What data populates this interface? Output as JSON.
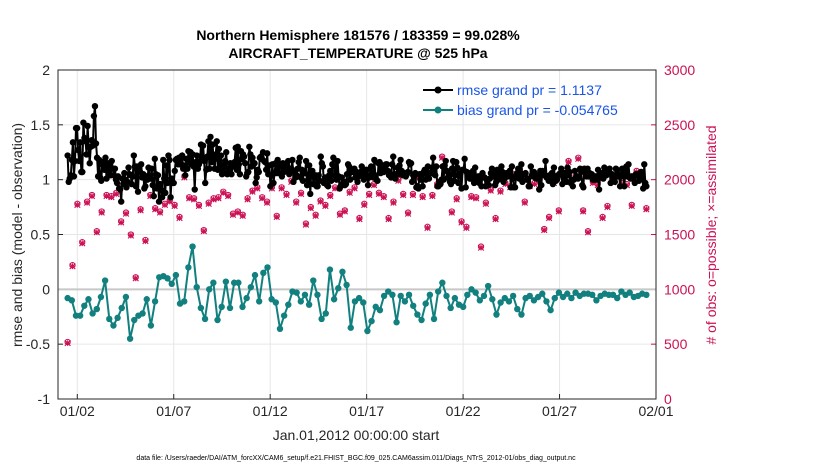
{
  "chart_data": {
    "type": "line",
    "title_line1": "Northern Hemisphere 181576 / 183359 = 99.028%",
    "title_line2": "AIRCRAFT_TEMPERATURE @ 525 hPa",
    "xlabel": "Jan.01,2012 00:00:00 start",
    "ylabel_left": "rmse and bias (model - observation)",
    "ylabel_right": "# of obs: o=possible; ×=assimilated",
    "footer": "data file: /Users/raeder/DAI/ATM_forcXX/CAM6_setup/f.e21.FHIST_BGC.f09_025.CAM6assim.011/Diags_NTrS_2012-01/obs_diag_output.nc",
    "xlim": [
      0.5,
      31.5
    ],
    "ylim_left": [
      -1,
      2
    ],
    "ylim_right": [
      0,
      3000
    ],
    "x_ticks": [
      1.5,
      6.5,
      11.5,
      16.5,
      21.5,
      26.5,
      31.5
    ],
    "x_tick_labels": [
      "01/02",
      "01/07",
      "01/12",
      "01/17",
      "01/22",
      "01/27",
      "02/01"
    ],
    "y_left_ticks": [
      -1,
      -0.5,
      0,
      0.5,
      1,
      1.5,
      2
    ],
    "y_left_tick_labels": [
      "-1",
      "-0.5",
      "0",
      "0.5",
      "1",
      "1.5",
      "2"
    ],
    "y_right_ticks": [
      0,
      500,
      1000,
      1500,
      2000,
      2500,
      3000
    ],
    "y_right_tick_labels": [
      "0",
      "500",
      "1000",
      "1500",
      "2000",
      "2500",
      "3000"
    ],
    "colors": {
      "rmse": "#000000",
      "bias": "#11807f",
      "obs": "#cc1155",
      "legend_text": "#1a55e8",
      "zero_line": "#c8c8c8",
      "grid": "#e6e6e6"
    },
    "series": [
      {
        "name": "rmse grand pr = 1.1137",
        "key": "rmse",
        "values": [
          1.22,
          0.98,
          1.01,
          1.04,
          1.18,
          1.34,
          1.03,
          1.17,
          1.47,
          1.47,
          1.27,
          1.17,
          1.34,
          1.07,
          1.07,
          1.52,
          1.38,
          1.35,
          1.23,
          1.49,
          1.3,
          1.15,
          1.3,
          1.36,
          1.31,
          1.58,
          1.67,
          1.33,
          1.2,
          1.03,
          1.18,
          1.02,
          0.99,
          1.16,
          1.13,
          1.09,
          1.2,
          1.01,
          1.15,
          1.07,
          1.13,
          1.04,
          1.17,
          1.1,
          1.04,
          1.1,
          1.0,
          0.97,
          1.03,
          0.92,
          0.91,
          0.8,
          1.01,
          0.96,
          1.06,
          1.0,
          0.93,
          0.98,
          1.11,
          1.05,
          1.04,
          0.96,
          1.03,
          1.22,
          1.12,
          0.94,
          1.12,
          0.89,
          1.12,
          1.07,
          1.14,
          1.02,
          1.05,
          0.92,
          0.94,
          1.03,
          1.0,
          1.11,
          1.03,
          1.01,
          1.1,
          0.95,
          0.85,
          1.19,
          1.05,
          0.92,
          1.04,
          0.8,
          0.96,
          0.91,
          0.84,
          1.18,
          1.01,
          0.88,
          1.13,
          0.97,
          1.22,
          1.18,
          0.84,
          1.01,
          0.97,
          0.97,
          1.08,
          1.18,
          1.19,
          1.14,
          1.2,
          1.14,
          1.2,
          1.22,
          1.1,
          1.13,
          1.04,
          1.19,
          1.1,
          1.26,
          1.16,
          1.25,
          1.14,
          1.23,
          1.12,
          0.91,
          1.16,
          1.22,
          1.1,
          1.14,
          1.17,
          1.32,
          1.2,
          1.31,
          1.17,
          0.97,
          1.09,
          1.21,
          1.35,
          1.1,
          1.39,
          1.16,
          1.32,
          1.18,
          1.1,
          1.23,
          1.35,
          1.09,
          1.28,
          1.1,
          1.22,
          1.05,
          1.13,
          1.06,
          1.17,
          1.25,
          1.05,
          1.1,
          1.1,
          1.15,
          1.05,
          1.12,
          1.13,
          1.16,
          1.29,
          1.09,
          1.3,
          1.14,
          1.05,
          1.26,
          1.19,
          1.23,
          1.21,
          1.15,
          1.03,
          1.06,
          1.07,
          1.3,
          1.23,
          1.12,
          1.2,
          1.14,
          1.15,
          0.97,
          1.02,
          1.09,
          1.07,
          1.2,
          1.21,
          1.19,
          1.25,
          1.17,
          1.16,
          1.09,
          1.24,
          1.05,
          1.13,
          0.94,
          1.04,
          1.14,
          0.97,
          1.06,
          1.15,
          1.06,
          1.18,
          1.06,
          1.13,
          1.14,
          1.03,
          1.15,
          1.07,
          1.14,
          1.1,
          1.13,
          1.17,
          1.05,
          1.08,
          1.1,
          1.18,
          0.98,
          1.07,
          1.02,
          1.04,
          1.1,
          1.16,
          1.2,
          1.02,
          1.09,
          0.99,
          1.08,
          1.06,
          1.17,
          0.95,
          1.0,
          1.13,
          0.87,
          1.08,
          1.08,
          0.96,
          1.02,
          1.04,
          0.94,
          0.94,
          1.04,
          0.99,
          1.21,
          1.15,
          1.12,
          0.97,
          1.02,
          1.0,
          0.95,
          0.94,
          1.04,
          1.08,
          0.99,
          1.14,
          1.2,
          1.04,
          1.12,
          1.0,
          1.17,
          1.03,
          0.92,
          0.94,
          1.02,
          0.96,
          0.98,
          0.95,
          0.96,
          1.05,
          1.14,
          1.12,
          1.0,
          1.07,
          1.08,
          1.07,
          1.1,
          1.02,
          1.07,
          0.98,
          1.03,
          1.04,
          1.07,
          1.12,
          1.08,
          1.0,
          1.04,
          1.09,
          1.09,
          0.95,
          1.02,
          1.04,
          1.12,
          1.06,
          1.02,
          1.18,
          1.04,
          1.0,
          0.99,
          1.15,
          1.16,
          1.06,
          1.1,
          1.13,
          1.07,
          1.1,
          1.14,
          1.14,
          1.08,
          1.04,
          1.05,
          1.02,
          1.14,
          1.21,
          1.05,
          1.01,
          1.05,
          1.11,
          1.05,
          1.13,
          1.18,
          1.08,
          1.04,
          1.05,
          1.06,
          1.03,
          1.05,
          1.07,
          1.16,
          1.14,
          1.15,
          0.98,
          1.04,
          1.03,
          1.06,
          0.93,
          0.94,
          0.92,
          1.05,
          1.0,
          1.05,
          0.94,
          1.07,
          1.09,
          1.0,
          1.06,
          1.12,
          1.01,
          1.06,
          1.06,
          1.11,
          1.2,
          1.05,
          1.04,
          1.12,
          0.94,
          0.94,
          0.98,
          0.96,
          1.0,
          1.12,
          1.0,
          1.13,
          1.17,
          1.08,
          1.02,
          1.05,
          0.98,
          0.96,
          1.1,
          1.17,
          0.99,
          1.04,
          1.16,
          1.11,
          0.97,
          1.05,
          1.06,
          0.92,
          1.09,
          1.09,
          1.19,
          0.93,
          1.07,
          1.03,
          1.06,
          1.01,
          1.01,
          1.05,
          1.08,
          0.97,
          1.11,
          1.02,
          0.98,
          1.03,
          0.97,
          1.03,
          0.94,
          1.06,
          1.02,
          1.02,
          0.94,
          1.0,
          0.95,
          0.95,
          1.01,
          1.06,
          1.1,
          1.03,
          1.05,
          0.95,
          0.98,
          1.09,
          1.0,
          1.06,
          1.02,
          1.12,
          1.07,
          0.98,
          1.01,
          1.04,
          1.06,
          1.03,
          1.05,
          1.08,
          0.93,
          1.12,
          1.01,
          0.93,
          0.93,
          1.03,
          1.06,
          1.1,
          1.01,
          1.01,
          1.14,
          0.98,
          1.05,
          1.05,
          1.06,
          1.0,
          1.01,
          0.94,
          0.94,
          1.12,
          1.04,
          1.03,
          1.07,
          1.05,
          1.01,
          1.03,
          1.03,
          0.91,
          1.08,
          0.95,
          1.08,
          1.05,
          1.04,
          1.17,
          1.02,
          1.03,
          0.99,
          1.04,
          0.99,
          1.06,
          0.96,
          1.11,
          1.02,
          0.99,
          1.0,
          1.04,
          1.05,
          1.06,
          1.1,
          0.96,
          1.02,
          1.06,
          1.06,
          0.98,
          1.11,
          1.04,
          1.07,
          0.97,
          1.0,
          0.94,
          1.0,
          1.08,
          1.02,
          1.03,
          1.01,
          1.02,
          1.1,
          1.07,
          0.95,
          0.93,
          1.1,
          1.09,
          1.03,
          1.1,
          1.03,
          1.06,
          1.05,
          1.05,
          1.0,
          1.0,
          1.0,
          1.03,
          1.0,
          1.09,
          0.91,
          1.03,
          1.05,
          1.06,
          1.01,
          1.11,
          1.07,
          1.04,
          1.07,
          1.09,
          1.1,
          0.97,
          1.05,
          1.02,
          1.0,
          0.98,
          1.1,
          1.09,
          1.03,
          1.05,
          0.94,
          1.03,
          1.1,
          1.05,
          0.94,
          1.06,
          1.12,
          1.03,
          1.14,
          1.02,
          1.01,
          1.03,
          1.01,
          1.03,
          0.97,
          1.05,
          1.04,
          1.05,
          0.99,
          1.01,
          1.07,
          1.05,
          0.92,
          1.14,
          0.97,
          0.94
        ]
      },
      {
        "name": "bias grand pr = -0.054765",
        "key": "bias",
        "values": [
          -0.08,
          -0.1,
          -0.24,
          -0.24,
          -0.15,
          -0.09,
          -0.22,
          -0.18,
          -0.07,
          0.08,
          -0.27,
          -0.33,
          -0.26,
          -0.17,
          -0.07,
          -0.45,
          -0.28,
          -0.24,
          -0.22,
          -0.09,
          -0.33,
          -0.11,
          0.11,
          0.12,
          0.1,
          0.05,
          0.13,
          -0.13,
          -0.11,
          0.2,
          0.39,
          0.02,
          -0.17,
          -0.27,
          0.0,
          0.06,
          -0.28,
          -0.16,
          0.07,
          -0.17,
          0.06,
          0.06,
          -0.16,
          -0.08,
          0.02,
          0.13,
          -0.11,
          0.15,
          0.2,
          -0.09,
          -0.12,
          -0.36,
          -0.24,
          -0.14,
          -0.02,
          -0.03,
          -0.11,
          -0.05,
          -0.14,
          0.08,
          -0.05,
          -0.27,
          -0.22,
          0.18,
          -0.09,
          0.01,
          0.16,
          0.04,
          -0.35,
          -0.11,
          -0.08,
          -0.12,
          -0.38,
          -0.29,
          -0.16,
          -0.19,
          -0.06,
          -0.02,
          -0.05,
          -0.3,
          -0.06,
          -0.11,
          -0.05,
          -0.15,
          -0.23,
          -0.28,
          -0.13,
          -0.05,
          -0.27,
          -0.02,
          0.06,
          -0.06,
          -0.17,
          -0.08,
          -0.14,
          -0.16,
          -0.05,
          0.0,
          -0.03,
          -0.1,
          -0.06,
          0.03,
          -0.09,
          -0.23,
          -0.12,
          -0.08,
          -0.11,
          -0.06,
          -0.18,
          -0.23,
          -0.08,
          -0.06,
          -0.1,
          -0.07,
          -0.04,
          -0.11,
          -0.19,
          -0.08,
          -0.03,
          -0.07,
          -0.04,
          -0.08,
          -0.03,
          -0.06,
          -0.04,
          -0.04,
          -0.05,
          -0.1,
          -0.06,
          -0.04,
          -0.05,
          -0.05,
          -0.08,
          -0.02,
          -0.05,
          -0.03,
          -0.07,
          -0.06,
          -0.04,
          -0.05
        ]
      },
      {
        "name": "# of obs possible",
        "key": "obs_possible",
        "values": [
          520,
          1220,
          1780,
          1430,
          1800,
          1860,
          1530,
          1710,
          1860,
          1850,
          1880,
          1620,
          1700,
          1500,
          1110,
          1730,
          1450,
          1860,
          1740,
          1710,
          1780,
          1810,
          1770,
          1660,
          2030,
          1840,
          1830,
          1770,
          1540,
          1790,
          1830,
          1840,
          1890,
          1860,
          1690,
          1710,
          1680,
          1830,
          1900,
          1930,
          1840,
          1800,
          1930,
          1670,
          1930,
          1870,
          1990,
          1800,
          1880,
          1600,
          1750,
          1680,
          1810,
          1770,
          1860,
          1930,
          1690,
          1720,
          1890,
          1930,
          1650,
          1780,
          1870,
          1960,
          1880,
          1850,
          1650,
          1800,
          2000,
          1870,
          1700,
          1870,
          2030,
          1850,
          1570,
          1860,
          1960,
          2210,
          2080,
          1710,
          1830,
          1620,
          1570,
          1850,
          1840,
          1390,
          1790,
          1910,
          1650,
          1900,
          1970,
          1940,
          2050,
          2090,
          1800,
          1950,
          1970,
          2030,
          1550,
          1660,
          1980,
          1720,
          2050,
          2170,
          2020,
          2200,
          1720,
          1530,
          1980,
          1960,
          1660,
          1760,
          2050,
          2040,
          1970,
          1960,
          1770,
          2080,
          2070,
          1740
        ]
      },
      {
        "name": "# of obs assimilated",
        "key": "obs_assimilated",
        "values": [
          510,
          1210,
          1770,
          1420,
          1790,
          1850,
          1520,
          1700,
          1850,
          1840,
          1870,
          1610,
          1690,
          1490,
          1100,
          1720,
          1440,
          1850,
          1730,
          1700,
          1770,
          1800,
          1760,
          1650,
          2020,
          1830,
          1820,
          1760,
          1530,
          1780,
          1820,
          1830,
          1880,
          1850,
          1680,
          1700,
          1670,
          1820,
          1890,
          1920,
          1830,
          1790,
          1920,
          1660,
          1920,
          1860,
          1980,
          1790,
          1870,
          1590,
          1740,
          1670,
          1800,
          1760,
          1850,
          1920,
          1680,
          1710,
          1880,
          1920,
          1640,
          1770,
          1860,
          1950,
          1870,
          1840,
          1640,
          1790,
          1990,
          1860,
          1690,
          1860,
          2020,
          1840,
          1560,
          1850,
          1950,
          2200,
          2070,
          1700,
          1820,
          1610,
          1560,
          1840,
          1830,
          1380,
          1780,
          1900,
          1640,
          1890,
          1960,
          1930,
          2040,
          2080,
          1790,
          1940,
          1960,
          2020,
          1540,
          1650,
          1970,
          1710,
          2040,
          2160,
          2010,
          2190,
          1710,
          1520,
          1970,
          1950,
          1650,
          1750,
          2040,
          2030,
          1960,
          1950,
          1760,
          2070,
          2060,
          1730
        ]
      }
    ]
  }
}
